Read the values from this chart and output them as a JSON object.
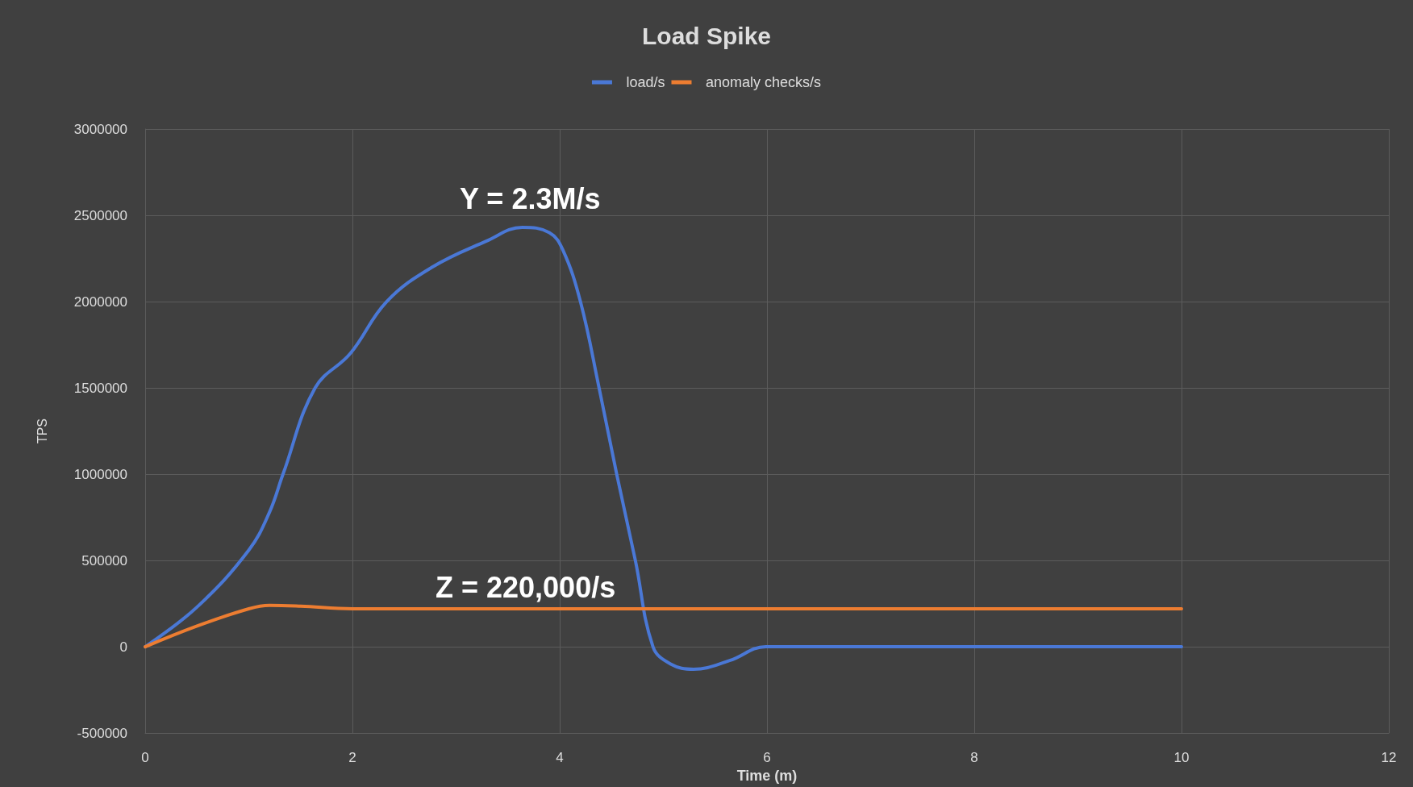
{
  "chart_data": {
    "type": "line",
    "title": "Load Spike",
    "xlabel": "Time (m)",
    "ylabel": "TPS",
    "series": [
      {
        "name": "load/s",
        "color": "#4a78d6",
        "x": [
          0,
          0.5,
          1,
          1.2,
          1.33,
          1.64,
          1.98,
          2.33,
          2.77,
          3.29,
          3.64,
          3.9,
          4.03,
          4.2,
          4.38,
          4.55,
          4.73,
          4.9,
          5.07,
          5.29,
          5.64,
          5.99,
          10
        ],
        "values": [
          0,
          230000,
          560000,
          780000,
          1000000,
          1500000,
          1700000,
          2000000,
          2200000,
          2350000,
          2430000,
          2400000,
          2300000,
          2000000,
          1500000,
          1000000,
          500000,
          0,
          -100000,
          -130000,
          -80000,
          0,
          0
        ]
      },
      {
        "name": "anomaly checks/s",
        "color": "#ed7d31",
        "x": [
          0,
          0.5,
          1,
          1.2,
          1.5,
          2,
          10
        ],
        "values": [
          0,
          120000,
          220000,
          240000,
          235000,
          220000,
          220000
        ]
      }
    ],
    "annotations": [
      "Y = 2.3M/s",
      "Z = 220,000/s"
    ],
    "xlim": [
      0,
      12
    ],
    "xticks": [
      0,
      2,
      4,
      6,
      8,
      10,
      12
    ],
    "ylim": [
      -500000,
      3000000
    ],
    "yticks": [
      -500000,
      0,
      500000,
      1000000,
      1500000,
      2000000,
      2500000,
      3000000
    ],
    "grid": true,
    "legend": "top",
    "marker": "none",
    "line_style": "solid"
  }
}
